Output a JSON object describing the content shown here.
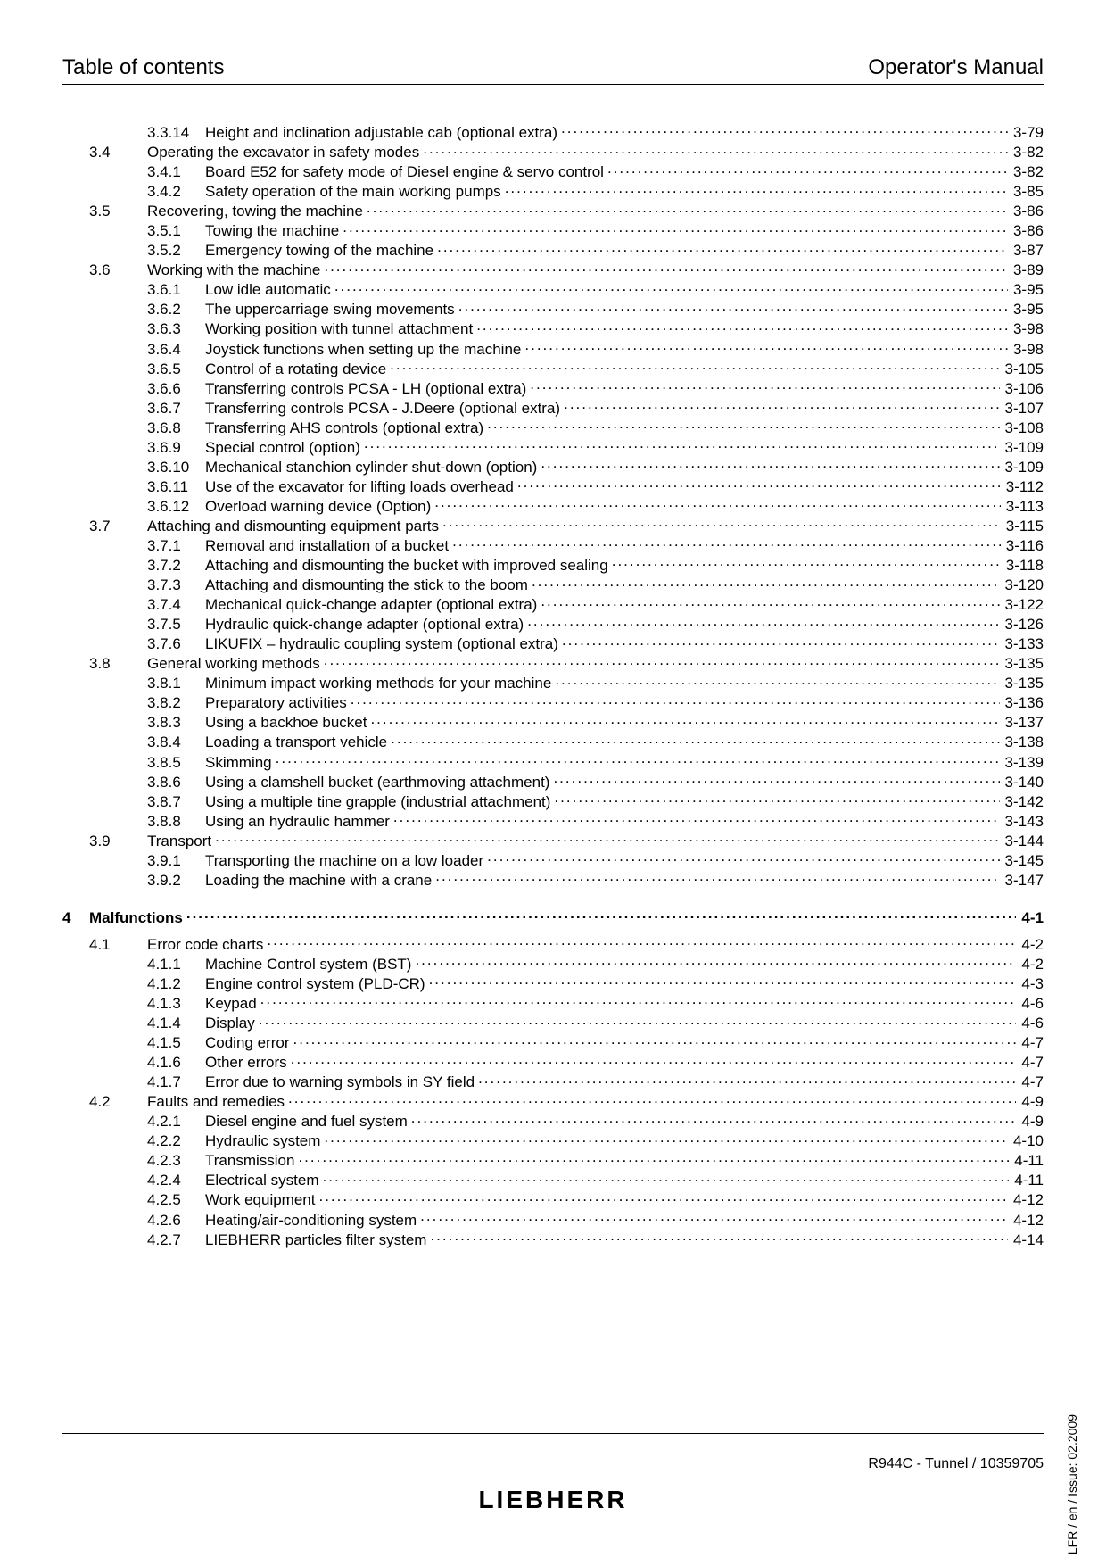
{
  "header": {
    "left": "Table of contents",
    "right": "Operator's Manual"
  },
  "footer": {
    "doc": "R944C - Tunnel / 10359705",
    "brand": "LIEBHERR",
    "side": "LFR / en / Issue: 02.2009"
  },
  "toc": [
    {
      "level": "sub",
      "sec": "",
      "sub": "3.3.14",
      "title": "Height and inclination adjustable cab (optional extra)",
      "page": "3-79"
    },
    {
      "level": "sec",
      "sec": "3.4",
      "sub": "",
      "title": "Operating the excavator in safety modes",
      "page": "3-82"
    },
    {
      "level": "sub",
      "sec": "",
      "sub": "3.4.1",
      "title": "Board E52 for safety mode of Diesel engine & servo control",
      "page": "3-82"
    },
    {
      "level": "sub",
      "sec": "",
      "sub": "3.4.2",
      "title": "Safety operation of the main working pumps",
      "page": "3-85"
    },
    {
      "level": "sec",
      "sec": "3.5",
      "sub": "",
      "title": "Recovering, towing the machine",
      "page": "3-86"
    },
    {
      "level": "sub",
      "sec": "",
      "sub": "3.5.1",
      "title": "Towing the machine",
      "page": "3-86"
    },
    {
      "level": "sub",
      "sec": "",
      "sub": "3.5.2",
      "title": "Emergency towing of the machine",
      "page": "3-87"
    },
    {
      "level": "sec",
      "sec": "3.6",
      "sub": "",
      "title": "Working with the machine",
      "page": "3-89"
    },
    {
      "level": "sub",
      "sec": "",
      "sub": "3.6.1",
      "title": "Low idle automatic",
      "page": "3-95"
    },
    {
      "level": "sub",
      "sec": "",
      "sub": "3.6.2",
      "title": "The uppercarriage swing movements",
      "page": "3-95"
    },
    {
      "level": "sub",
      "sec": "",
      "sub": "3.6.3",
      "title": "Working position with tunnel attachment",
      "page": "3-98"
    },
    {
      "level": "sub",
      "sec": "",
      "sub": "3.6.4",
      "title": "Joystick functions when setting up the machine",
      "page": "3-98"
    },
    {
      "level": "sub",
      "sec": "",
      "sub": "3.6.5",
      "title": "Control of a rotating device",
      "page": "3-105"
    },
    {
      "level": "sub",
      "sec": "",
      "sub": "3.6.6",
      "title": "Transferring controls PCSA - LH (optional extra)",
      "page": "3-106"
    },
    {
      "level": "sub",
      "sec": "",
      "sub": "3.6.7",
      "title": "Transferring controls PCSA - J.Deere (optional extra)",
      "page": "3-107"
    },
    {
      "level": "sub",
      "sec": "",
      "sub": "3.6.8",
      "title": "Transferring AHS controls (optional extra)",
      "page": "3-108"
    },
    {
      "level": "sub",
      "sec": "",
      "sub": "3.6.9",
      "title": "Special control (option)",
      "page": "3-109"
    },
    {
      "level": "sub",
      "sec": "",
      "sub": "3.6.10",
      "title": "Mechanical stanchion cylinder shut-down (option)",
      "page": "3-109"
    },
    {
      "level": "sub",
      "sec": "",
      "sub": "3.6.11",
      "title": "Use of the excavator for lifting loads overhead",
      "page": "3-112"
    },
    {
      "level": "sub",
      "sec": "",
      "sub": "3.6.12",
      "title": "Overload warning device (Option)",
      "page": "3-113"
    },
    {
      "level": "sec",
      "sec": "3.7",
      "sub": "",
      "title": "Attaching and dismounting equipment parts",
      "page": "3-115"
    },
    {
      "level": "sub",
      "sec": "",
      "sub": "3.7.1",
      "title": "Removal and installation of a bucket",
      "page": "3-116"
    },
    {
      "level": "sub",
      "sec": "",
      "sub": "3.7.2",
      "title": "Attaching and dismounting the bucket with improved sealing",
      "page": "3-118"
    },
    {
      "level": "sub",
      "sec": "",
      "sub": "3.7.3",
      "title": "Attaching and dismounting the stick to the boom",
      "page": "3-120"
    },
    {
      "level": "sub",
      "sec": "",
      "sub": "3.7.4",
      "title": "Mechanical quick-change adapter (optional extra)",
      "page": "3-122"
    },
    {
      "level": "sub",
      "sec": "",
      "sub": "3.7.5",
      "title": "Hydraulic quick-change adapter (optional extra)",
      "page": "3-126"
    },
    {
      "level": "sub",
      "sec": "",
      "sub": "3.7.6",
      "title": "LIKUFIX – hydraulic coupling system (optional extra)",
      "page": "3-133"
    },
    {
      "level": "sec",
      "sec": "3.8",
      "sub": "",
      "title": "General working methods",
      "page": "3-135"
    },
    {
      "level": "sub",
      "sec": "",
      "sub": "3.8.1",
      "title": "Minimum impact working methods for your machine",
      "page": "3-135"
    },
    {
      "level": "sub",
      "sec": "",
      "sub": "3.8.2",
      "title": "Preparatory activities",
      "page": "3-136"
    },
    {
      "level": "sub",
      "sec": "",
      "sub": "3.8.3",
      "title": "Using a backhoe bucket",
      "page": "3-137"
    },
    {
      "level": "sub",
      "sec": "",
      "sub": "3.8.4",
      "title": "Loading a transport vehicle",
      "page": "3-138"
    },
    {
      "level": "sub",
      "sec": "",
      "sub": "3.8.5",
      "title": "Skimming",
      "page": "3-139"
    },
    {
      "level": "sub",
      "sec": "",
      "sub": "3.8.6",
      "title": "Using a clamshell bucket (earthmoving attachment)",
      "page": "3-140"
    },
    {
      "level": "sub",
      "sec": "",
      "sub": "3.8.7",
      "title": "Using a multiple tine grapple (industrial attachment)",
      "page": "3-142"
    },
    {
      "level": "sub",
      "sec": "",
      "sub": "3.8.8",
      "title": "Using an hydraulic hammer",
      "page": "3-143"
    },
    {
      "level": "sec",
      "sec": "3.9",
      "sub": "",
      "title": "Transport",
      "page": "3-144"
    },
    {
      "level": "sub",
      "sec": "",
      "sub": "3.9.1",
      "title": "Transporting the machine on a low loader",
      "page": "3-145"
    },
    {
      "level": "sub",
      "sec": "",
      "sub": "3.9.2",
      "title": "Loading the machine with a crane",
      "page": "3-147"
    },
    {
      "level": "gap"
    },
    {
      "level": "chap",
      "chap": "4",
      "title": "Malfunctions",
      "page": "4-1"
    },
    {
      "level": "halfgap"
    },
    {
      "level": "sec",
      "sec": "4.1",
      "sub": "",
      "title": "Error code charts",
      "page": "4-2"
    },
    {
      "level": "sub",
      "sec": "",
      "sub": "4.1.1",
      "title": "Machine Control system (BST)",
      "page": "4-2"
    },
    {
      "level": "sub",
      "sec": "",
      "sub": "4.1.2",
      "title": "Engine control system (PLD-CR)",
      "page": "4-3"
    },
    {
      "level": "sub",
      "sec": "",
      "sub": "4.1.3",
      "title": "Keypad",
      "page": "4-6"
    },
    {
      "level": "sub",
      "sec": "",
      "sub": "4.1.4",
      "title": "Display",
      "page": "4-6"
    },
    {
      "level": "sub",
      "sec": "",
      "sub": "4.1.5",
      "title": "Coding error",
      "page": "4-7"
    },
    {
      "level": "sub",
      "sec": "",
      "sub": "4.1.6",
      "title": "Other errors",
      "page": "4-7"
    },
    {
      "level": "sub",
      "sec": "",
      "sub": "4.1.7",
      "title": "Error due to warning symbols in SY field",
      "page": "4-7"
    },
    {
      "level": "sec",
      "sec": "4.2",
      "sub": "",
      "title": "Faults and remedies",
      "page": "4-9"
    },
    {
      "level": "sub",
      "sec": "",
      "sub": "4.2.1",
      "title": "Diesel engine and fuel system",
      "page": "4-9"
    },
    {
      "level": "sub",
      "sec": "",
      "sub": "4.2.2",
      "title": "Hydraulic system",
      "page": "4-10"
    },
    {
      "level": "sub",
      "sec": "",
      "sub": "4.2.3",
      "title": "Transmission",
      "page": "4-11"
    },
    {
      "level": "sub",
      "sec": "",
      "sub": "4.2.4",
      "title": "Electrical system",
      "page": "4-11"
    },
    {
      "level": "sub",
      "sec": "",
      "sub": "4.2.5",
      "title": "Work equipment",
      "page": "4-12"
    },
    {
      "level": "sub",
      "sec": "",
      "sub": "4.2.6",
      "title": "Heating/air-conditioning system",
      "page": "4-12"
    },
    {
      "level": "sub",
      "sec": "",
      "sub": "4.2.7",
      "title": "LIEBHERR particles filter system",
      "page": "4-14"
    }
  ]
}
